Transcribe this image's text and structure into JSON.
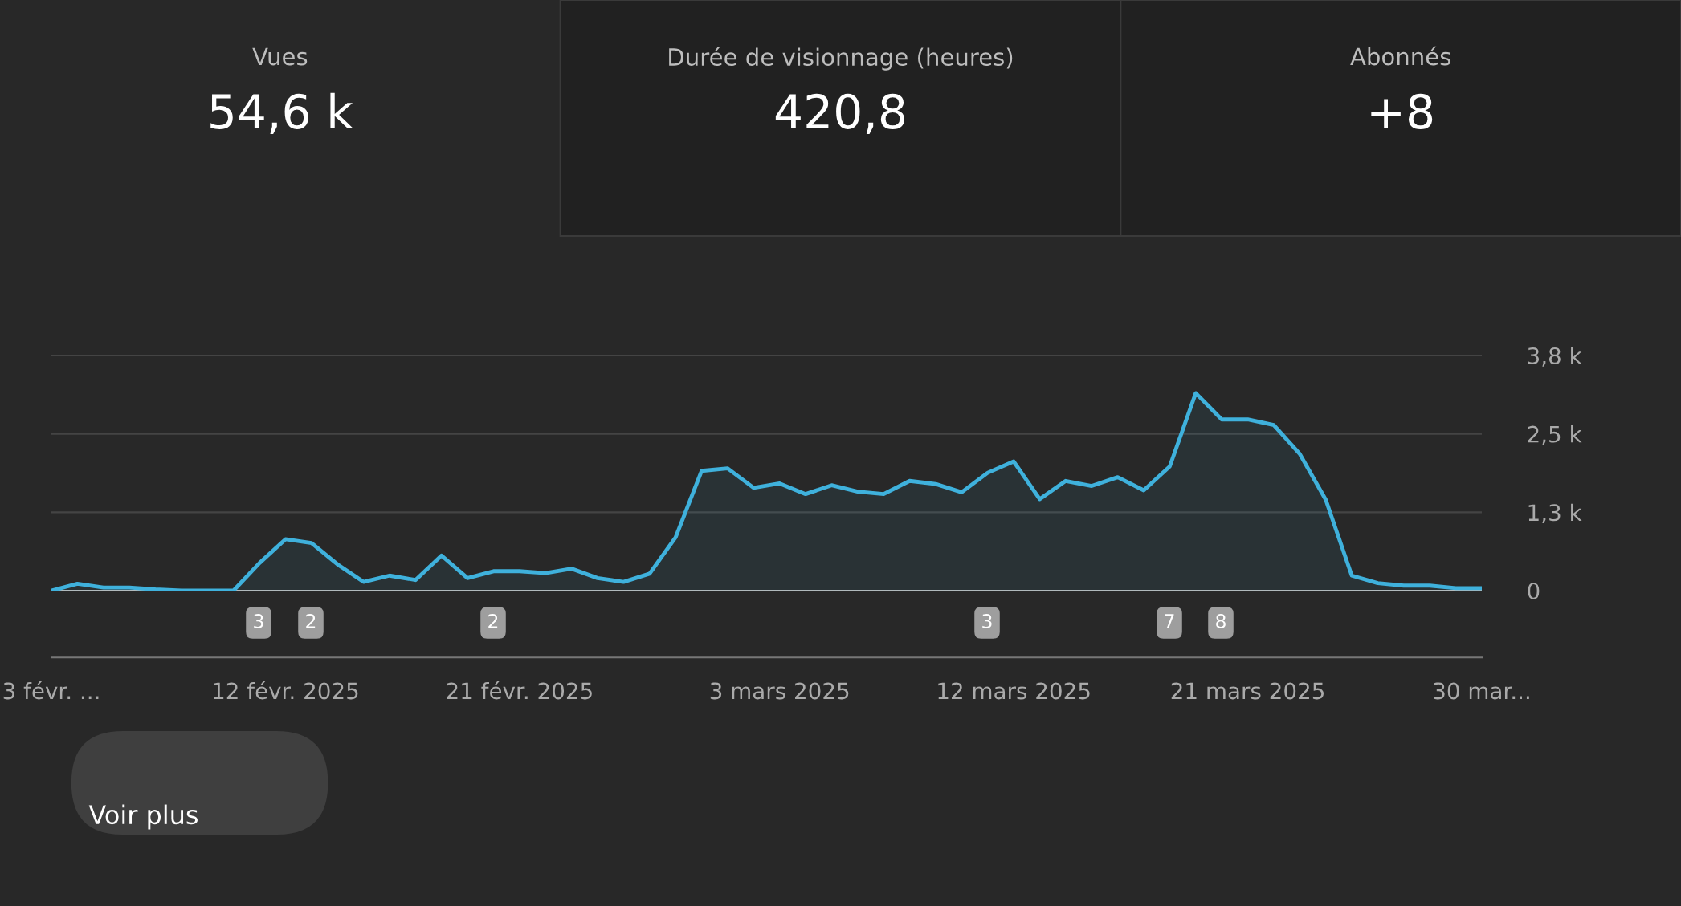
{
  "chart_data": [
    {
      "type": "other",
      "annotations": [
        "Vues",
        "54,6 k",
        "Durée de visionnage (heures)",
        "420,8",
        "Abonnés",
        "+8"
      ]
    },
    {
      "type": "area",
      "x": [
        "2025-02-03",
        "2025-02-04",
        "2025-02-05",
        "2025-02-06",
        "2025-02-07",
        "2025-02-08",
        "2025-02-09",
        "2025-02-10",
        "2025-02-11",
        "2025-02-12",
        "2025-02-13",
        "2025-02-14",
        "2025-02-15",
        "2025-02-16",
        "2025-02-17",
        "2025-02-18",
        "2025-02-19",
        "2025-02-20",
        "2025-02-21",
        "2025-02-22",
        "2025-02-23",
        "2025-02-24",
        "2025-02-25",
        "2025-02-26",
        "2025-02-27",
        "2025-02-28",
        "2025-03-01",
        "2025-03-02",
        "2025-03-03",
        "2025-03-04",
        "2025-03-05",
        "2025-03-06",
        "2025-03-07",
        "2025-03-08",
        "2025-03-09",
        "2025-03-10",
        "2025-03-11",
        "2025-03-12",
        "2025-03-13",
        "2025-03-14",
        "2025-03-15",
        "2025-03-16",
        "2025-03-17",
        "2025-03-18",
        "2025-03-19",
        "2025-03-20",
        "2025-03-21",
        "2025-03-22",
        "2025-03-23",
        "2025-03-24",
        "2025-03-25",
        "2025-03-26",
        "2025-03-27",
        "2025-03-28",
        "2025-03-29",
        "2025-03-30"
      ],
      "series": [
        {
          "color": "#3fb1dc",
          "values": [
            0,
            110,
            50,
            50,
            20,
            0,
            0,
            0,
            440,
            820,
            760,
            420,
            140,
            240,
            170,
            560,
            200,
            310,
            310,
            280,
            350,
            200,
            140,
            270,
            850,
            1910,
            1950,
            1640,
            1710,
            1540,
            1680,
            1580,
            1540,
            1750,
            1700,
            1570,
            1880,
            2060,
            1460,
            1750,
            1670,
            1810,
            1600,
            1980,
            3150,
            2730,
            2730,
            2640,
            2180,
            1450,
            240,
            120,
            80,
            80,
            40,
            40
          ]
        }
      ],
      "xlim": [
        "2025-02-03",
        "2025-03-30"
      ],
      "xticks": [
        {
          "value": "2025-02-03",
          "label": "3 févr. ..."
        },
        {
          "value": "2025-02-12",
          "label": "12 févr. 2025"
        },
        {
          "value": "2025-02-21",
          "label": "21 févr. 2025"
        },
        {
          "value": "2025-03-03",
          "label": "3 mars 2025"
        },
        {
          "value": "2025-03-12",
          "label": "12 mars 2025"
        },
        {
          "value": "2025-03-21",
          "label": "21 mars 2025"
        },
        {
          "value": "2025-03-30",
          "label": "30 mar..."
        }
      ],
      "ylim": [
        0,
        3750
      ],
      "yticks": [
        {
          "value": 0,
          "label": "0"
        },
        {
          "value": 1250,
          "label": "1,3 k"
        },
        {
          "value": 2500,
          "label": "2,5 k"
        },
        {
          "value": 3750,
          "label": "3,8 k"
        }
      ],
      "grid": "y",
      "annotations": [
        "3",
        "2",
        "2",
        "3",
        "7",
        "8",
        "Voir plus"
      ]
    }
  ]
}
